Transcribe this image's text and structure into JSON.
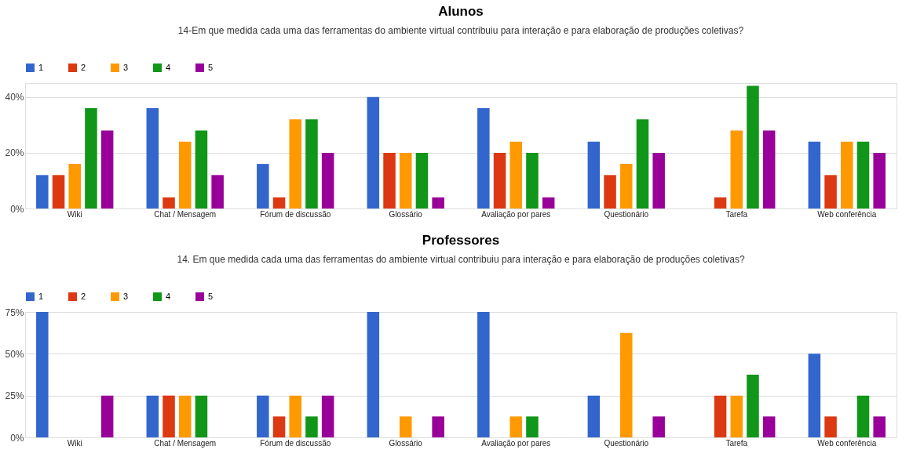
{
  "chart_data": [
    {
      "type": "bar",
      "title": "Alunos",
      "subtitle": "14-Em que medida cada uma das  ferramentas do ambiente virtual contribuiu para interação e para elaboração de produções coletivas?",
      "categories": [
        "Wiki",
        "Chat / Mensagem",
        "Fórum de discussão",
        "Glossário",
        "Avaliação por pares",
        "Questionário",
        "Tarefa",
        "Web conferência"
      ],
      "series": [
        {
          "name": "1",
          "color": "#3366cc",
          "values": [
            12,
            36,
            16,
            40,
            36,
            24,
            0,
            24
          ]
        },
        {
          "name": "2",
          "color": "#dc3912",
          "values": [
            12,
            4,
            4,
            20,
            20,
            12,
            4,
            12
          ]
        },
        {
          "name": "3",
          "color": "#ff9900",
          "values": [
            16,
            24,
            32,
            20,
            24,
            16,
            28,
            24
          ]
        },
        {
          "name": "4",
          "color": "#109618",
          "values": [
            36,
            28,
            32,
            20,
            20,
            32,
            44,
            24
          ]
        },
        {
          "name": "5",
          "color": "#990099",
          "values": [
            28,
            12,
            20,
            4,
            4,
            20,
            28,
            20
          ]
        }
      ],
      "ylim": [
        0,
        45
      ],
      "yticks": [
        {
          "value": 0,
          "label": "0%"
        },
        {
          "value": 20,
          "label": "20%"
        },
        {
          "value": 40,
          "label": "40%"
        }
      ],
      "grid": "y",
      "legend": "top left"
    },
    {
      "type": "bar",
      "title": "Professores",
      "subtitle": "14. Em que medida cada uma das  ferramentas do ambiente virtual contribuiu para interação e para elaboração de produções coletivas?",
      "categories": [
        "Wiki",
        "Chat / Mensagem",
        "Fórum de discussão",
        "Glossário",
        "Avaliação por pares",
        "Questionário",
        "Tarefa",
        "Web conferência"
      ],
      "series": [
        {
          "name": "1",
          "color": "#3366cc",
          "values": [
            75,
            25,
            25,
            75,
            75,
            25,
            0,
            50
          ]
        },
        {
          "name": "2",
          "color": "#dc3912",
          "values": [
            0,
            25,
            12.5,
            0,
            0,
            0,
            25,
            12.5
          ]
        },
        {
          "name": "3",
          "color": "#ff9900",
          "values": [
            0,
            25,
            25,
            12.5,
            12.5,
            62.5,
            25,
            0
          ]
        },
        {
          "name": "4",
          "color": "#109618",
          "values": [
            0,
            25,
            12.5,
            0,
            12.5,
            0,
            37.5,
            25
          ]
        },
        {
          "name": "5",
          "color": "#990099",
          "values": [
            25,
            0,
            25,
            12.5,
            0,
            12.5,
            12.5,
            12.5
          ]
        }
      ],
      "ylim": [
        0,
        75
      ],
      "yticks": [
        {
          "value": 0,
          "label": "0%"
        },
        {
          "value": 25,
          "label": "25%"
        },
        {
          "value": 50,
          "label": "50%"
        },
        {
          "value": 75,
          "label": "75%"
        }
      ],
      "grid": "y",
      "legend": "top left"
    }
  ]
}
